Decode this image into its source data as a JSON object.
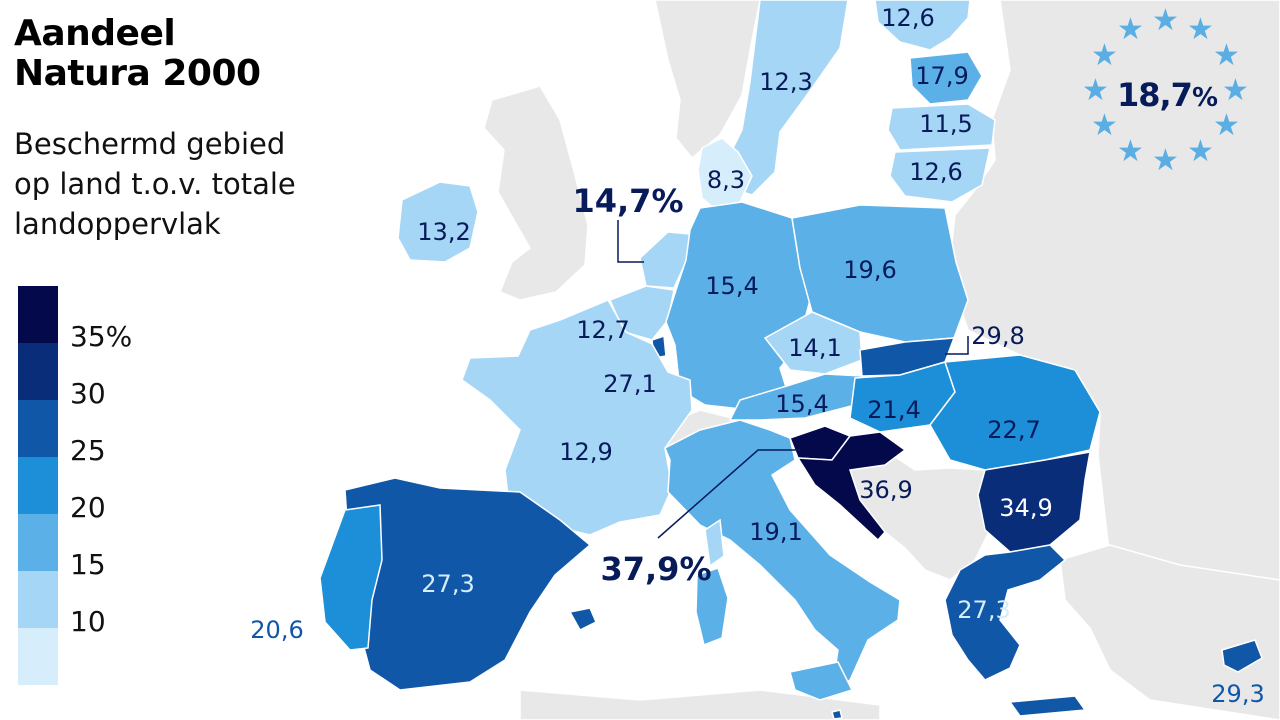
{
  "title_line1": "Aandeel",
  "title_line2": "Natura 2000",
  "subtitle_line1": "Beschermd gebied",
  "subtitle_line2": "op land t.o.v. totale",
  "subtitle_line3": "landoppervlak",
  "eu_average": {
    "value": "18,7",
    "unit": "%"
  },
  "legend": {
    "ticks": [
      "35%",
      "30",
      "25",
      "20",
      "15",
      "10"
    ],
    "colors": [
      "#03094a",
      "#0a2d7a",
      "#1157a8",
      "#1d8ed8",
      "#5bb0e8",
      "#a6d6f6",
      "#d6eefb"
    ]
  },
  "base_colors": {
    "non_member": "#e8e8e8",
    "border": "#ffffff"
  },
  "countries": [
    {
      "id": "finland",
      "value": "12,6",
      "color": "#a6d6f6",
      "text_color": "#071a5a"
    },
    {
      "id": "sweden",
      "value": "12,3",
      "color": "#a6d6f6",
      "text_color": "#071a5a"
    },
    {
      "id": "estonia",
      "value": "17,9",
      "color": "#5bb0e8",
      "text_color": "#071a5a"
    },
    {
      "id": "latvia",
      "value": "11,5",
      "color": "#a6d6f6",
      "text_color": "#071a5a"
    },
    {
      "id": "lithuania",
      "value": "12,6",
      "color": "#a6d6f6",
      "text_color": "#071a5a"
    },
    {
      "id": "denmark",
      "value": "8,3",
      "color": "#d6eefb",
      "text_color": "#071a5a"
    },
    {
      "id": "ireland",
      "value": "13,2",
      "color": "#a6d6f6",
      "text_color": "#071a5a"
    },
    {
      "id": "netherlands",
      "value": "14,7%",
      "color": "#a6d6f6",
      "text_color": "#071a5a"
    },
    {
      "id": "germany",
      "value": "15,4",
      "color": "#5bb0e8",
      "text_color": "#071a5a"
    },
    {
      "id": "poland",
      "value": "19,6",
      "color": "#5bb0e8",
      "text_color": "#071a5a"
    },
    {
      "id": "belgium",
      "value": "12,7",
      "color": "#a6d6f6",
      "text_color": "#071a5a"
    },
    {
      "id": "luxembourg",
      "value": "27,1",
      "color": "#1157a8",
      "text_color": "#071a5a"
    },
    {
      "id": "czechia",
      "value": "14,1",
      "color": "#a6d6f6",
      "text_color": "#071a5a"
    },
    {
      "id": "slovakia",
      "value": "29,8",
      "color": "#1157a8",
      "text_color": "#071a5a"
    },
    {
      "id": "austria",
      "value": "15,4",
      "color": "#5bb0e8",
      "text_color": "#071a5a"
    },
    {
      "id": "hungary",
      "value": "21,4",
      "color": "#1d8ed8",
      "text_color": "#071a5a"
    },
    {
      "id": "romania",
      "value": "22,7",
      "color": "#1d8ed8",
      "text_color": "#071a5a"
    },
    {
      "id": "france",
      "value": "12,9",
      "color": "#a6d6f6",
      "text_color": "#071a5a"
    },
    {
      "id": "slovenia",
      "value": "37,9%",
      "color": "#03094a",
      "text_color": "#071a5a"
    },
    {
      "id": "croatia",
      "value": "36,9",
      "color": "#03094a",
      "text_color": "#071a5a"
    },
    {
      "id": "bulgaria",
      "value": "34,9",
      "color": "#0a2d7a",
      "text_color": "#ffffff"
    },
    {
      "id": "italy",
      "value": "19,1",
      "color": "#5bb0e8",
      "text_color": "#071a5a"
    },
    {
      "id": "spain",
      "value": "27,3",
      "color": "#1157a8",
      "text_color": "#d6eefb"
    },
    {
      "id": "portugal",
      "value": "20,6",
      "color": "#1d8ed8",
      "text_color": "#1157a8"
    },
    {
      "id": "greece",
      "value": "27,3",
      "color": "#1157a8",
      "text_color": "#d6eefb"
    },
    {
      "id": "cyprus",
      "value": "29,3",
      "color": "#1157a8",
      "text_color": "#1157a8"
    },
    {
      "id": "malta",
      "value": "",
      "color": "#1157a8",
      "text_color": "#071a5a"
    }
  ]
}
